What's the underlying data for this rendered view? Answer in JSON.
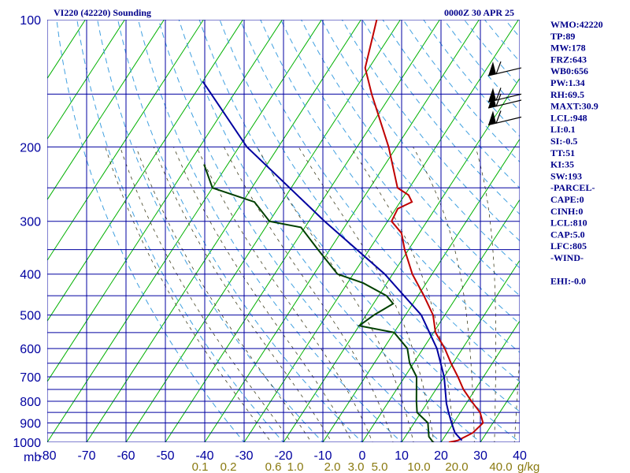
{
  "header": {
    "title": "VI220 (42220) Sounding",
    "time": "0000Z 30 APR 25"
  },
  "indices": [
    "WMO:42220",
    "TP:89",
    "MW:178",
    "FRZ:643",
    "WB0:656",
    "PW:1.34",
    "RH:69.5",
    "MAXT:30.9",
    "LCL:948",
    "LI:0.1",
    "SI:-0.5",
    "TT:51",
    "KI:35",
    "SW:193",
    "-PARCEL-",
    "CAPE:0",
    "CINH:0",
    "LCL:810",
    "CAP:5.0",
    "LFC:805",
    "-WIND-",
    "",
    "EHI:-0.0"
  ],
  "colors": {
    "temperature": "#c00000",
    "dewpoint": "#004000",
    "parcel": "#0000a0",
    "grid": "#0000a0",
    "isotherm": "#00b000",
    "dry_adiabat": "#40a0e0",
    "moist_adiabat": "#404020",
    "mixing_ratio_label": "#8a7a10"
  },
  "chart_data": {
    "type": "line",
    "subtype": "skew-T log-p sounding",
    "y_scale": "log",
    "ylim": [
      1000,
      100
    ],
    "xlim": [
      -80,
      40
    ],
    "y_ticks": [
      100,
      200,
      300,
      400,
      500,
      600,
      700,
      800,
      900,
      1000
    ],
    "y_gridlines": [
      100,
      150,
      200,
      250,
      300,
      350,
      400,
      450,
      500,
      550,
      600,
      650,
      700,
      750,
      800,
      850,
      900,
      950,
      1000
    ],
    "x_ticks": [
      -80,
      -70,
      -60,
      -50,
      -40,
      -30,
      -20,
      -10,
      0,
      10,
      20,
      30,
      40
    ],
    "x_tick_labels": [
      "-80",
      "-70",
      "-60",
      "-50",
      "-40",
      "-30",
      "-20",
      "-10",
      "0",
      "10",
      "20",
      "30",
      "40"
    ],
    "x_unit": "C",
    "y_unit": "mb",
    "y_unit_label": "mb",
    "mixing_ratio_labels": [
      "0.1",
      "0.2",
      "0.6",
      "1.0",
      "2.0",
      "3.0",
      "5.0",
      "10.0",
      "20.0",
      "40.0"
    ],
    "mixing_ratio_unit": "g/kg",
    "series": [
      {
        "key": "temperature",
        "points": [
          [
            1000,
            22
          ],
          [
            990,
            24
          ],
          [
            950,
            26.5
          ],
          [
            900,
            27.5
          ],
          [
            850,
            25
          ],
          [
            800,
            21
          ],
          [
            750,
            17
          ],
          [
            700,
            13.5
          ],
          [
            650,
            9.5
          ],
          [
            600,
            5.5
          ],
          [
            550,
            0.5
          ],
          [
            500,
            -3
          ],
          [
            450,
            -8.5
          ],
          [
            400,
            -15
          ],
          [
            350,
            -21
          ],
          [
            320,
            -24.5
          ],
          [
            300,
            -29
          ],
          [
            280,
            -29.5
          ],
          [
            270,
            -27
          ],
          [
            260,
            -29
          ],
          [
            250,
            -33
          ],
          [
            200,
            -42
          ],
          [
            150,
            -55
          ],
          [
            130,
            -61
          ],
          [
            100,
            -66
          ]
        ]
      },
      {
        "key": "dewpoint",
        "points": [
          [
            1000,
            18
          ],
          [
            970,
            16
          ],
          [
            900,
            13.5
          ],
          [
            850,
            9
          ],
          [
            800,
            7
          ],
          [
            700,
            3
          ],
          [
            650,
            -1
          ],
          [
            600,
            -4
          ],
          [
            550,
            -10
          ],
          [
            530,
            -20
          ],
          [
            500,
            -18
          ],
          [
            470,
            -15
          ],
          [
            450,
            -18
          ],
          [
            420,
            -26
          ],
          [
            400,
            -34
          ],
          [
            350,
            -43
          ],
          [
            310,
            -51
          ],
          [
            300,
            -60
          ],
          [
            270,
            -67
          ],
          [
            250,
            -80
          ],
          [
            220,
            -86
          ]
        ]
      },
      {
        "key": "parcel",
        "points": [
          [
            990,
            25
          ],
          [
            950,
            22
          ],
          [
            900,
            19.5
          ],
          [
            850,
            17
          ],
          [
            810,
            15
          ],
          [
            700,
            10
          ],
          [
            600,
            3.5
          ],
          [
            500,
            -6
          ],
          [
            400,
            -22
          ],
          [
            300,
            -46
          ],
          [
            200,
            -78
          ],
          [
            140,
            -100
          ]
        ]
      }
    ],
    "wind_barbs": [
      {
        "pressure": 130,
        "direction": 280,
        "speed_kt": 20
      },
      {
        "pressure": 150,
        "direction": 280,
        "speed_kt": 20
      },
      {
        "pressure": 155,
        "direction": 285,
        "speed_kt": 20
      },
      {
        "pressure": 170,
        "direction": 280,
        "speed_kt": 15
      }
    ]
  }
}
